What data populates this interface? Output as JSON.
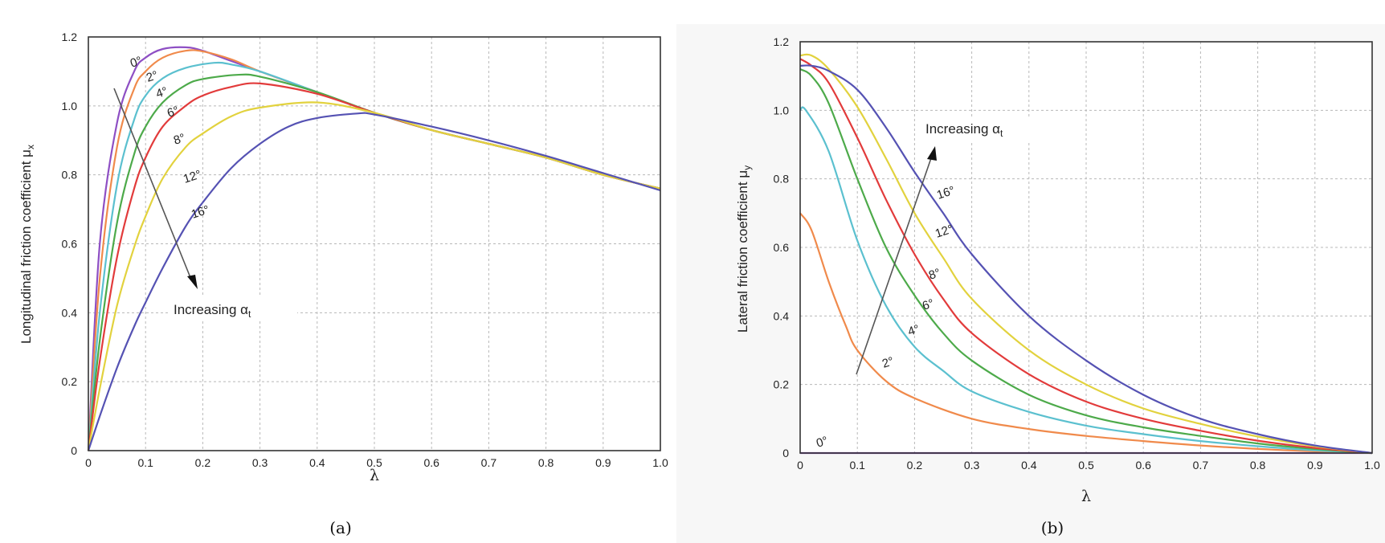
{
  "chart_data": [
    {
      "type": "line",
      "panel_label": "(a)",
      "xlabel": "λ",
      "ylabel": "Longitudinal friction coefficient μ",
      "ylabel_sub": "x",
      "xlim": [
        0,
        1.0
      ],
      "ylim": [
        0,
        1.2
      ],
      "xticks": [
        "0",
        "0.1",
        "0.2",
        "0.3",
        "0.4",
        "0.5",
        "0.6",
        "0.7",
        "0.8",
        "0.9",
        "1.0"
      ],
      "yticks": [
        "0",
        "0.2",
        "0.4",
        "0.6",
        "0.8",
        "1.0",
        "1.2"
      ],
      "grid": true,
      "annotation": {
        "text": "Increasing α",
        "sub": "t"
      },
      "series": [
        {
          "name": "0°",
          "color": "#8e4fc4",
          "x": [
            0,
            0.02,
            0.05,
            0.08,
            0.1,
            0.13,
            0.17,
            0.2,
            0.25,
            0.3,
            0.4,
            0.5,
            0.6,
            0.7,
            0.8,
            0.9,
            1.0
          ],
          "y": [
            0,
            0.6,
            0.95,
            1.1,
            1.14,
            1.165,
            1.17,
            1.16,
            1.13,
            1.1,
            1.04,
            0.98,
            0.93,
            0.89,
            0.85,
            0.8,
            0.76
          ]
        },
        {
          "name": "2°",
          "color": "#f08a4b",
          "x": [
            0,
            0.02,
            0.05,
            0.08,
            0.1,
            0.13,
            0.17,
            0.2,
            0.25,
            0.3,
            0.4,
            0.5,
            0.6,
            0.7,
            0.8,
            0.9,
            1.0
          ],
          "y": [
            0,
            0.5,
            0.88,
            1.05,
            1.1,
            1.14,
            1.16,
            1.158,
            1.135,
            1.1,
            1.04,
            0.98,
            0.93,
            0.89,
            0.85,
            0.8,
            0.76
          ]
        },
        {
          "name": "4°",
          "color": "#5bc0cf",
          "x": [
            0,
            0.02,
            0.05,
            0.08,
            0.1,
            0.13,
            0.17,
            0.22,
            0.25,
            0.3,
            0.4,
            0.5,
            0.6,
            0.7,
            0.8,
            0.9,
            1.0
          ],
          "y": [
            0,
            0.4,
            0.77,
            0.96,
            1.03,
            1.08,
            1.11,
            1.125,
            1.12,
            1.1,
            1.04,
            0.98,
            0.93,
            0.89,
            0.85,
            0.8,
            0.76
          ]
        },
        {
          "name": "6°",
          "color": "#4daa4a",
          "x": [
            0,
            0.02,
            0.05,
            0.08,
            0.1,
            0.13,
            0.17,
            0.2,
            0.26,
            0.3,
            0.4,
            0.5,
            0.6,
            0.7,
            0.8,
            0.9,
            1.0
          ],
          "y": [
            0,
            0.32,
            0.66,
            0.86,
            0.94,
            1.01,
            1.06,
            1.078,
            1.09,
            1.085,
            1.04,
            0.98,
            0.93,
            0.89,
            0.85,
            0.8,
            0.76
          ]
        },
        {
          "name": "8°",
          "color": "#e23b3b",
          "x": [
            0,
            0.02,
            0.05,
            0.08,
            0.1,
            0.13,
            0.17,
            0.2,
            0.25,
            0.3,
            0.4,
            0.5,
            0.6,
            0.7,
            0.8,
            0.9,
            1.0
          ],
          "y": [
            0,
            0.26,
            0.56,
            0.76,
            0.85,
            0.94,
            1.0,
            1.03,
            1.055,
            1.065,
            1.035,
            0.98,
            0.93,
            0.89,
            0.85,
            0.8,
            0.76
          ]
        },
        {
          "name": "12°",
          "color": "#e2d23e",
          "x": [
            0,
            0.02,
            0.05,
            0.08,
            0.1,
            0.13,
            0.17,
            0.2,
            0.25,
            0.3,
            0.4,
            0.5,
            0.6,
            0.7,
            0.8,
            0.9,
            1.0
          ],
          "y": [
            0,
            0.18,
            0.42,
            0.59,
            0.68,
            0.79,
            0.88,
            0.92,
            0.97,
            0.995,
            1.01,
            0.98,
            0.93,
            0.89,
            0.85,
            0.8,
            0.76
          ]
        },
        {
          "name": "16°",
          "color": "#5552b3",
          "x": [
            0,
            0.02,
            0.05,
            0.08,
            0.1,
            0.13,
            0.17,
            0.2,
            0.25,
            0.3,
            0.35,
            0.4,
            0.47,
            0.5,
            0.6,
            0.7,
            0.8,
            0.9,
            1.0
          ],
          "y": [
            0,
            0.1,
            0.24,
            0.36,
            0.43,
            0.53,
            0.65,
            0.72,
            0.82,
            0.89,
            0.94,
            0.965,
            0.978,
            0.975,
            0.94,
            0.9,
            0.855,
            0.805,
            0.755
          ]
        }
      ]
    },
    {
      "type": "line",
      "panel_label": "(b)",
      "xlabel": "λ",
      "ylabel": "Lateral friction coefficient μ",
      "ylabel_sub": "y",
      "xlim": [
        0,
        1.0
      ],
      "ylim": [
        0,
        1.2
      ],
      "xticks": [
        "0",
        "0.1",
        "0.2",
        "0.3",
        "0.4",
        "0.5",
        "0.6",
        "0.7",
        "0.8",
        "0.9",
        "1.0"
      ],
      "yticks": [
        "0",
        "0.2",
        "0.4",
        "0.6",
        "0.8",
        "1.0",
        "1.2"
      ],
      "grid": true,
      "annotation": {
        "text": "Increasing α",
        "sub": "t"
      },
      "series": [
        {
          "name": "0°",
          "color": "#8e4fc4",
          "x": [
            0,
            0.5,
            1.0
          ],
          "y": [
            0,
            0,
            0
          ]
        },
        {
          "name": "2°",
          "color": "#f08a4b",
          "x": [
            0,
            0.02,
            0.05,
            0.08,
            0.1,
            0.15,
            0.2,
            0.3,
            0.4,
            0.5,
            0.6,
            0.7,
            0.8,
            0.9,
            1.0
          ],
          "y": [
            0.7,
            0.65,
            0.5,
            0.37,
            0.3,
            0.21,
            0.16,
            0.1,
            0.07,
            0.05,
            0.035,
            0.022,
            0.012,
            0.005,
            0
          ]
        },
        {
          "name": "4°",
          "color": "#5bc0cf",
          "x": [
            0,
            0.01,
            0.05,
            0.1,
            0.15,
            0.2,
            0.25,
            0.3,
            0.4,
            0.5,
            0.6,
            0.7,
            0.8,
            0.9,
            1.0
          ],
          "y": [
            1.0,
            1.0,
            0.88,
            0.62,
            0.43,
            0.31,
            0.24,
            0.18,
            0.12,
            0.08,
            0.055,
            0.035,
            0.02,
            0.008,
            0
          ]
        },
        {
          "name": "6°",
          "color": "#4daa4a",
          "x": [
            0,
            0.02,
            0.05,
            0.1,
            0.15,
            0.2,
            0.25,
            0.3,
            0.4,
            0.5,
            0.6,
            0.7,
            0.8,
            0.9,
            1.0
          ],
          "y": [
            1.12,
            1.1,
            1.02,
            0.8,
            0.6,
            0.46,
            0.35,
            0.27,
            0.17,
            0.11,
            0.075,
            0.05,
            0.028,
            0.012,
            0
          ]
        },
        {
          "name": "8°",
          "color": "#e23b3b",
          "x": [
            0,
            0.02,
            0.05,
            0.1,
            0.15,
            0.2,
            0.25,
            0.3,
            0.4,
            0.5,
            0.6,
            0.7,
            0.8,
            0.9,
            1.0
          ],
          "y": [
            1.15,
            1.13,
            1.08,
            0.92,
            0.74,
            0.58,
            0.45,
            0.35,
            0.23,
            0.15,
            0.1,
            0.065,
            0.036,
            0.015,
            0
          ]
        },
        {
          "name": "12°",
          "color": "#e2d23e",
          "x": [
            0,
            0.02,
            0.05,
            0.1,
            0.15,
            0.2,
            0.25,
            0.3,
            0.4,
            0.5,
            0.6,
            0.7,
            0.8,
            0.9,
            1.0
          ],
          "y": [
            1.16,
            1.16,
            1.12,
            1.01,
            0.86,
            0.7,
            0.57,
            0.45,
            0.3,
            0.2,
            0.13,
            0.085,
            0.048,
            0.02,
            0
          ]
        },
        {
          "name": "16°",
          "color": "#5552b3",
          "x": [
            0,
            0.02,
            0.05,
            0.1,
            0.15,
            0.2,
            0.25,
            0.3,
            0.4,
            0.5,
            0.6,
            0.7,
            0.8,
            0.9,
            1.0
          ],
          "y": [
            1.13,
            1.13,
            1.115,
            1.06,
            0.95,
            0.82,
            0.7,
            0.58,
            0.4,
            0.27,
            0.17,
            0.1,
            0.055,
            0.022,
            0
          ]
        }
      ]
    }
  ]
}
